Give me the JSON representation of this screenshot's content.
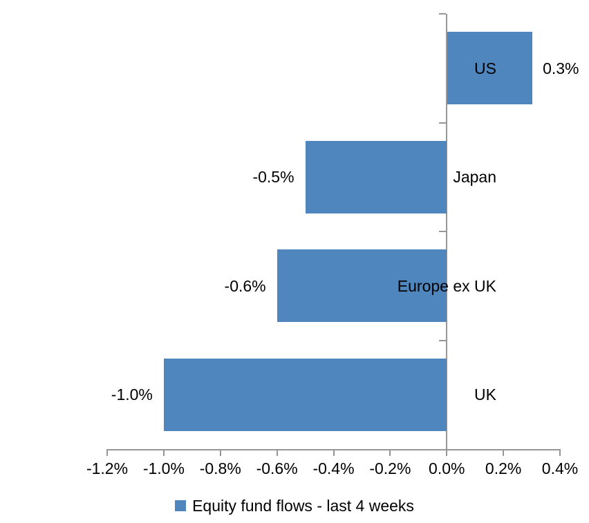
{
  "chart_data": {
    "type": "bar",
    "orientation": "horizontal",
    "title": "",
    "categories": [
      "US",
      "Japan",
      "Europe ex UK",
      "UK"
    ],
    "values": [
      0.3,
      -0.5,
      -0.6,
      -1.0
    ],
    "data_labels": [
      "0.3%",
      "-0.5%",
      "-0.6%",
      "-1.0%"
    ],
    "unit": "%",
    "x_tick_labels": [
      "-1.2%",
      "-1.0%",
      "-0.8%",
      "-0.6%",
      "-0.4%",
      "-0.2%",
      "0.0%",
      "0.2%",
      "0.4%"
    ],
    "xlim": [
      -1.2,
      0.4
    ],
    "x_tick_step": 0.2,
    "grid": false,
    "legend_position": "bottom",
    "legend": [
      "Equity fund flows - last 4 weeks"
    ],
    "colors": {
      "bar": "#4E86BD",
      "axis": "#969696",
      "text": "#000000",
      "background": "#FFFFFF"
    }
  }
}
